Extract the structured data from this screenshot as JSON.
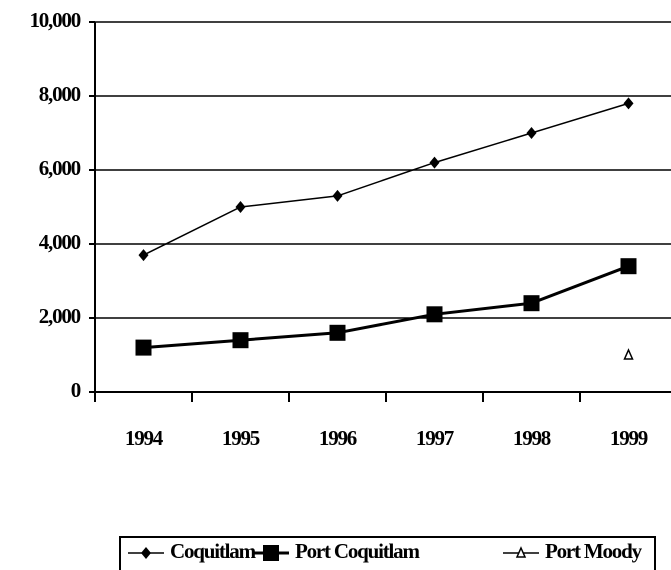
{
  "chart_data": {
    "type": "line",
    "categories": [
      "1994",
      "1995",
      "1996",
      "1997",
      "1998",
      "1999"
    ],
    "series": [
      {
        "name": "Coquitlam",
        "color": "#000000",
        "marker": "diamond",
        "values": [
          3700,
          5000,
          5300,
          6200,
          7000,
          7800
        ]
      },
      {
        "name": "Port Coquitlam",
        "color": "#000000",
        "marker": "square",
        "values": [
          1200,
          1400,
          1600,
          2100,
          2400,
          3400
        ]
      },
      {
        "name": "Port Moody",
        "color": "#000000",
        "marker": "triangle",
        "values": [
          null,
          null,
          null,
          null,
          null,
          1000
        ]
      }
    ],
    "ylim": [
      0,
      10000
    ],
    "yticks": [
      0,
      {
        "value": 2000,
        "label": "2,000"
      },
      {
        "value": 4000,
        "label": "4,000"
      },
      {
        "value": 6000,
        "label": "6,000"
      },
      {
        "value": 8000,
        "label": "8,000"
      },
      {
        "value": 10000,
        "label": "10,000"
      }
    ],
    "grid": true,
    "legend": "bottom"
  }
}
